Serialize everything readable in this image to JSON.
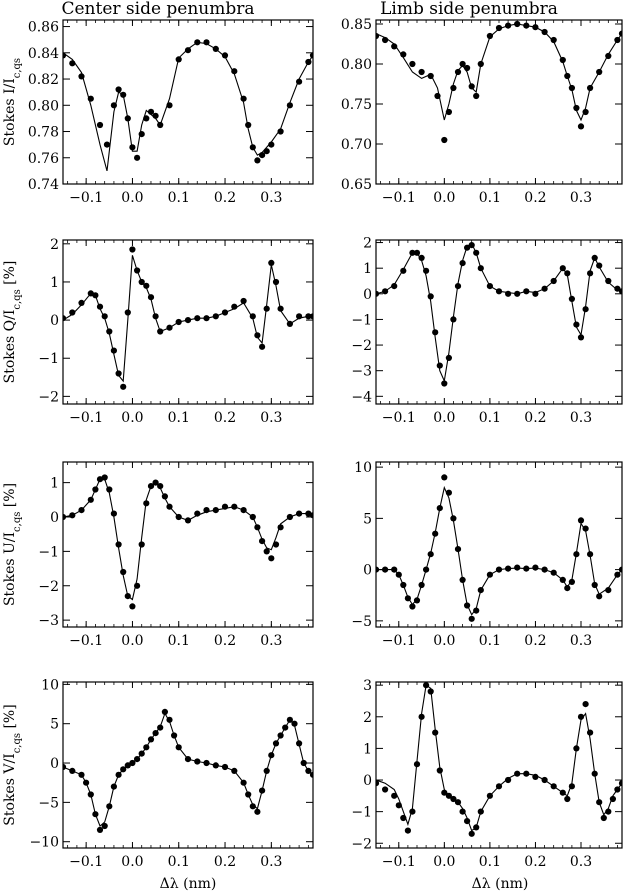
{
  "columns": [
    "Center side penumbra",
    "Limb side penumbra"
  ],
  "xlabel": "Δλ (nm)",
  "chart_data": [
    {
      "type": "scatter",
      "row": 0,
      "col": 0,
      "ylabel_main": "Stokes I/I",
      "ylabel_sub": "c,qs",
      "ylabel_suffix": "",
      "xlim": [
        -0.15,
        0.39
      ],
      "xticks": [
        -0.1,
        0.0,
        0.1,
        0.2,
        0.3
      ],
      "xticklabels": [
        "−0.1",
        "0.0",
        "0.1",
        "0.2",
        "0.3"
      ],
      "ylim": [
        0.74,
        0.865
      ],
      "yticks": [
        0.74,
        0.76,
        0.78,
        0.8,
        0.82,
        0.84,
        0.86
      ],
      "yticklabels": [
        "0.74",
        "0.76",
        "0.78",
        "0.80",
        "0.82",
        "0.84",
        "0.86"
      ],
      "x": [
        -0.15,
        -0.13,
        -0.11,
        -0.09,
        -0.07,
        -0.055,
        -0.04,
        -0.03,
        -0.02,
        -0.01,
        0.0,
        0.01,
        0.02,
        0.03,
        0.04,
        0.05,
        0.06,
        0.08,
        0.1,
        0.12,
        0.14,
        0.16,
        0.18,
        0.2,
        0.22,
        0.24,
        0.25,
        0.26,
        0.27,
        0.28,
        0.29,
        0.3,
        0.32,
        0.34,
        0.36,
        0.38,
        0.39
      ],
      "y": [
        0.838,
        0.832,
        0.822,
        0.805,
        0.785,
        0.77,
        0.8,
        0.812,
        0.808,
        0.79,
        0.768,
        0.76,
        0.778,
        0.79,
        0.795,
        0.792,
        0.785,
        0.8,
        0.835,
        0.842,
        0.848,
        0.848,
        0.843,
        0.838,
        0.826,
        0.805,
        0.785,
        0.768,
        0.758,
        0.762,
        0.765,
        0.77,
        0.78,
        0.8,
        0.818,
        0.833,
        0.838
      ],
      "fit": [
        0.84,
        0.835,
        0.825,
        0.8,
        0.77,
        0.75,
        0.795,
        0.81,
        0.808,
        0.79,
        0.765,
        0.765,
        0.785,
        0.796,
        0.793,
        0.79,
        0.785,
        0.805,
        0.836,
        0.843,
        0.848,
        0.847,
        0.843,
        0.837,
        0.824,
        0.802,
        0.782,
        0.768,
        0.762,
        0.764,
        0.768,
        0.772,
        0.782,
        0.802,
        0.82,
        0.833,
        0.838
      ]
    },
    {
      "type": "scatter",
      "row": 0,
      "col": 1,
      "ylabel_main": "",
      "ylabel_sub": "",
      "ylabel_suffix": "",
      "xlim": [
        -0.15,
        0.39
      ],
      "xticks": [
        -0.1,
        0.0,
        0.1,
        0.2,
        0.3
      ],
      "xticklabels": [
        "−0.1",
        "0.0",
        "0.1",
        "0.2",
        "0.3"
      ],
      "ylim": [
        0.65,
        0.855
      ],
      "yticks": [
        0.65,
        0.7,
        0.75,
        0.8,
        0.85
      ],
      "yticklabels": [
        "0.65",
        "0.70",
        "0.75",
        "0.80",
        "0.85"
      ],
      "x": [
        -0.15,
        -0.13,
        -0.11,
        -0.09,
        -0.07,
        -0.05,
        -0.03,
        -0.015,
        0.0,
        0.01,
        0.02,
        0.03,
        0.04,
        0.05,
        0.06,
        0.07,
        0.08,
        0.1,
        0.12,
        0.14,
        0.16,
        0.18,
        0.2,
        0.22,
        0.24,
        0.26,
        0.27,
        0.28,
        0.29,
        0.3,
        0.31,
        0.32,
        0.34,
        0.36,
        0.38,
        0.39
      ],
      "y": [
        0.835,
        0.83,
        0.822,
        0.812,
        0.8,
        0.79,
        0.785,
        0.76,
        0.705,
        0.74,
        0.77,
        0.79,
        0.8,
        0.795,
        0.772,
        0.76,
        0.8,
        0.835,
        0.845,
        0.848,
        0.85,
        0.848,
        0.846,
        0.84,
        0.83,
        0.805,
        0.785,
        0.77,
        0.745,
        0.722,
        0.74,
        0.77,
        0.79,
        0.81,
        0.83,
        0.838
      ],
      "fit": [
        0.838,
        0.833,
        0.825,
        0.808,
        0.79,
        0.782,
        0.787,
        0.77,
        0.73,
        0.75,
        0.775,
        0.792,
        0.798,
        0.79,
        0.77,
        0.765,
        0.8,
        0.834,
        0.844,
        0.848,
        0.85,
        0.848,
        0.846,
        0.84,
        0.828,
        0.803,
        0.785,
        0.768,
        0.742,
        0.73,
        0.745,
        0.77,
        0.79,
        0.812,
        0.83,
        0.838
      ]
    },
    {
      "type": "scatter",
      "row": 1,
      "col": 0,
      "ylabel_main": "Stokes Q/I",
      "ylabel_sub": "c,qs",
      "ylabel_suffix": " [%]",
      "xlim": [
        -0.15,
        0.39
      ],
      "xticks": [
        -0.1,
        0.0,
        0.1,
        0.2,
        0.3
      ],
      "xticklabels": [
        "−0.1",
        "0.0",
        "0.1",
        "0.2",
        "0.3"
      ],
      "ylim": [
        -2.2,
        2.1
      ],
      "yticks": [
        -2,
        -1,
        0,
        1,
        2
      ],
      "yticklabels": [
        "−2",
        "−1",
        "0",
        "1",
        "2"
      ],
      "x": [
        -0.15,
        -0.13,
        -0.11,
        -0.09,
        -0.08,
        -0.07,
        -0.06,
        -0.05,
        -0.04,
        -0.03,
        -0.02,
        -0.01,
        0.0,
        0.01,
        0.02,
        0.03,
        0.04,
        0.05,
        0.06,
        0.08,
        0.1,
        0.12,
        0.14,
        0.16,
        0.18,
        0.2,
        0.22,
        0.24,
        0.26,
        0.27,
        0.28,
        0.29,
        0.3,
        0.31,
        0.32,
        0.34,
        0.36,
        0.38,
        0.39
      ],
      "y": [
        0.05,
        0.2,
        0.45,
        0.7,
        0.65,
        0.35,
        0.1,
        -0.3,
        -0.8,
        -1.4,
        -1.75,
        0.2,
        1.85,
        1.3,
        1.0,
        0.9,
        0.6,
        0.1,
        -0.3,
        -0.2,
        -0.05,
        0.0,
        0.05,
        0.05,
        0.1,
        0.2,
        0.35,
        0.5,
        0.1,
        -0.4,
        -0.7,
        0.3,
        1.5,
        1.0,
        0.3,
        -0.1,
        0.1,
        0.1,
        0.1
      ],
      "fit": [
        0.0,
        0.15,
        0.4,
        0.7,
        0.65,
        0.3,
        0.05,
        -0.35,
        -0.9,
        -1.45,
        -1.6,
        0.0,
        1.7,
        1.3,
        1.0,
        0.85,
        0.55,
        0.05,
        -0.3,
        -0.2,
        -0.05,
        0.0,
        0.05,
        0.05,
        0.1,
        0.2,
        0.3,
        0.45,
        0.05,
        -0.45,
        -0.6,
        0.4,
        1.45,
        0.9,
        0.25,
        -0.1,
        0.05,
        0.1,
        0.1
      ]
    },
    {
      "type": "scatter",
      "row": 1,
      "col": 1,
      "ylabel_main": "",
      "ylabel_sub": "",
      "ylabel_suffix": "",
      "xlim": [
        -0.15,
        0.39
      ],
      "xticks": [
        -0.1,
        0.0,
        0.1,
        0.2,
        0.3
      ],
      "xticklabels": [
        "−0.1",
        "0.0",
        "0.1",
        "0.2",
        "0.3"
      ],
      "ylim": [
        -4.3,
        2.1
      ],
      "yticks": [
        -4,
        -3,
        -2,
        -1,
        0,
        1,
        2
      ],
      "yticklabels": [
        "−4",
        "−3",
        "−2",
        "−1",
        "0",
        "1",
        "2"
      ],
      "x": [
        -0.15,
        -0.13,
        -0.11,
        -0.09,
        -0.07,
        -0.06,
        -0.05,
        -0.04,
        -0.03,
        -0.02,
        -0.01,
        0.0,
        0.01,
        0.02,
        0.03,
        0.04,
        0.05,
        0.06,
        0.07,
        0.08,
        0.1,
        0.12,
        0.14,
        0.16,
        0.18,
        0.2,
        0.22,
        0.24,
        0.26,
        0.27,
        0.28,
        0.29,
        0.3,
        0.31,
        0.32,
        0.33,
        0.34,
        0.36,
        0.38,
        0.39
      ],
      "y": [
        0.0,
        0.1,
        0.3,
        0.9,
        1.6,
        1.6,
        1.4,
        0.9,
        -0.1,
        -1.5,
        -2.8,
        -3.5,
        -2.5,
        -1.0,
        0.3,
        1.2,
        1.8,
        1.9,
        1.6,
        1.0,
        0.3,
        0.1,
        0.0,
        0.0,
        0.1,
        0.0,
        0.2,
        0.5,
        1.0,
        0.8,
        -0.2,
        -1.2,
        -1.7,
        -0.6,
        0.8,
        1.4,
        1.1,
        0.5,
        0.2,
        0.1
      ],
      "fit": [
        0.0,
        0.1,
        0.35,
        0.95,
        1.6,
        1.6,
        1.3,
        0.7,
        -0.3,
        -1.7,
        -3.0,
        -3.4,
        -2.3,
        -0.9,
        0.4,
        1.3,
        1.85,
        1.95,
        1.6,
        1.0,
        0.3,
        0.1,
        0.05,
        0.0,
        0.1,
        0.05,
        0.2,
        0.5,
        1.0,
        0.75,
        -0.3,
        -1.3,
        -1.6,
        -0.5,
        0.9,
        1.4,
        1.05,
        0.45,
        0.15,
        0.1
      ]
    },
    {
      "type": "scatter",
      "row": 2,
      "col": 0,
      "ylabel_main": "Stokes U/I",
      "ylabel_sub": "c,qs",
      "ylabel_suffix": " [%]",
      "xlim": [
        -0.15,
        0.39
      ],
      "xticks": [
        -0.1,
        0.0,
        0.1,
        0.2,
        0.3
      ],
      "xticklabels": [
        "−0.1",
        "0.0",
        "0.1",
        "0.2",
        "0.3"
      ],
      "ylim": [
        -3.2,
        1.6
      ],
      "yticks": [
        -3,
        -2,
        -1,
        0,
        1
      ],
      "yticklabels": [
        "−3",
        "−2",
        "−1",
        "0",
        "1"
      ],
      "x": [
        -0.15,
        -0.13,
        -0.11,
        -0.09,
        -0.08,
        -0.07,
        -0.06,
        -0.05,
        -0.04,
        -0.03,
        -0.02,
        -0.01,
        0.0,
        0.01,
        0.02,
        0.03,
        0.04,
        0.05,
        0.06,
        0.07,
        0.08,
        0.1,
        0.12,
        0.14,
        0.16,
        0.18,
        0.2,
        0.22,
        0.24,
        0.26,
        0.27,
        0.28,
        0.29,
        0.3,
        0.31,
        0.32,
        0.34,
        0.36,
        0.38,
        0.39
      ],
      "y": [
        0.0,
        0.05,
        0.2,
        0.5,
        0.8,
        1.1,
        1.15,
        0.8,
        0.1,
        -0.8,
        -1.6,
        -2.3,
        -2.6,
        -2.0,
        -0.8,
        0.4,
        0.9,
        1.0,
        0.9,
        0.6,
        0.3,
        0.0,
        -0.1,
        0.1,
        0.2,
        0.2,
        0.3,
        0.3,
        0.2,
        0.0,
        -0.3,
        -0.7,
        -1.0,
        -1.2,
        -0.8,
        -0.3,
        0.0,
        0.1,
        0.1,
        0.05
      ],
      "fit": [
        0.0,
        0.05,
        0.2,
        0.5,
        0.8,
        1.1,
        1.1,
        0.7,
        0.0,
        -0.9,
        -1.7,
        -2.3,
        -2.4,
        -1.8,
        -0.6,
        0.5,
        0.9,
        1.0,
        0.85,
        0.55,
        0.3,
        0.0,
        -0.1,
        0.05,
        0.15,
        0.2,
        0.25,
        0.3,
        0.2,
        0.0,
        -0.3,
        -0.65,
        -0.9,
        -0.95,
        -0.6,
        -0.2,
        0.0,
        0.1,
        0.1,
        0.05
      ]
    },
    {
      "type": "scatter",
      "row": 2,
      "col": 1,
      "ylabel_main": "",
      "ylabel_sub": "",
      "ylabel_suffix": "",
      "xlim": [
        -0.15,
        0.39
      ],
      "xticks": [
        -0.1,
        0.0,
        0.1,
        0.2,
        0.3
      ],
      "xticklabels": [
        "−0.1",
        "0.0",
        "0.1",
        "0.2",
        "0.3"
      ],
      "ylim": [
        -5.6,
        10.5
      ],
      "yticks": [
        -5,
        0,
        5,
        10
      ],
      "yticklabels": [
        "−5",
        "0",
        "5",
        "10"
      ],
      "x": [
        -0.15,
        -0.13,
        -0.11,
        -0.1,
        -0.09,
        -0.08,
        -0.07,
        -0.06,
        -0.05,
        -0.04,
        -0.03,
        -0.02,
        -0.01,
        0.0,
        0.01,
        0.02,
        0.03,
        0.04,
        0.05,
        0.06,
        0.07,
        0.08,
        0.1,
        0.12,
        0.14,
        0.16,
        0.18,
        0.2,
        0.22,
        0.24,
        0.26,
        0.27,
        0.28,
        0.29,
        0.3,
        0.31,
        0.32,
        0.33,
        0.34,
        0.36,
        0.38,
        0.39
      ],
      "y": [
        0.0,
        0.0,
        0.0,
        -0.5,
        -1.5,
        -2.8,
        -3.6,
        -3.0,
        -1.5,
        0.0,
        1.5,
        3.5,
        6.0,
        9.0,
        7.5,
        5.0,
        2.0,
        -1.0,
        -3.5,
        -4.8,
        -4.0,
        -2.0,
        -0.5,
        0.0,
        0.1,
        0.2,
        0.1,
        0.2,
        0.0,
        -0.3,
        -1.0,
        -1.8,
        -1.2,
        1.5,
        4.8,
        4.0,
        1.5,
        -1.5,
        -2.6,
        -2.0,
        -0.5,
        0.0
      ],
      "fit": [
        0.0,
        0.0,
        0.0,
        -0.5,
        -1.5,
        -2.7,
        -3.4,
        -2.9,
        -1.5,
        0.0,
        1.6,
        3.6,
        6.0,
        8.0,
        7.0,
        4.8,
        2.0,
        -1.0,
        -3.4,
        -4.4,
        -3.8,
        -2.0,
        -0.5,
        0.0,
        0.1,
        0.15,
        0.1,
        0.15,
        0.0,
        -0.3,
        -1.0,
        -1.7,
        -1.0,
        1.6,
        4.5,
        3.8,
        1.4,
        -1.4,
        -2.4,
        -1.8,
        -0.5,
        0.0
      ]
    },
    {
      "type": "scatter",
      "row": 3,
      "col": 0,
      "ylabel_main": "Stokes V/I",
      "ylabel_sub": "c,qs",
      "ylabel_suffix": " [%]",
      "xlim": [
        -0.15,
        0.39
      ],
      "xticks": [
        -0.1,
        0.0,
        0.1,
        0.2,
        0.3
      ],
      "xticklabels": [
        "−0.1",
        "0.0",
        "0.1",
        "0.2",
        "0.3"
      ],
      "ylim": [
        -10.8,
        10.3
      ],
      "yticks": [
        -10,
        -5,
        0,
        5,
        10
      ],
      "yticklabels": [
        "−10",
        "−5",
        "0",
        "5",
        "10"
      ],
      "x": [
        -0.15,
        -0.13,
        -0.11,
        -0.1,
        -0.09,
        -0.08,
        -0.07,
        -0.06,
        -0.05,
        -0.04,
        -0.03,
        -0.02,
        -0.01,
        0.0,
        0.01,
        0.02,
        0.03,
        0.04,
        0.05,
        0.06,
        0.07,
        0.08,
        0.09,
        0.1,
        0.12,
        0.14,
        0.16,
        0.18,
        0.2,
        0.22,
        0.24,
        0.25,
        0.26,
        0.27,
        0.28,
        0.29,
        0.3,
        0.31,
        0.32,
        0.33,
        0.34,
        0.35,
        0.36,
        0.37,
        0.38,
        0.39
      ],
      "y": [
        -0.5,
        -1.0,
        -1.5,
        -2.5,
        -4.0,
        -6.5,
        -8.5,
        -8.0,
        -5.5,
        -3.0,
        -1.5,
        -0.8,
        -0.3,
        0.0,
        0.5,
        1.2,
        2.0,
        3.0,
        3.8,
        4.5,
        6.5,
        5.5,
        3.5,
        2.0,
        0.5,
        0.2,
        0.0,
        -0.3,
        -0.5,
        -1.0,
        -2.5,
        -4.0,
        -5.5,
        -6.2,
        -3.5,
        -1.0,
        1.0,
        2.5,
        3.5,
        4.5,
        5.5,
        5.0,
        2.5,
        0.0,
        -1.0,
        -1.5
      ],
      "fit": [
        -0.5,
        -1.0,
        -1.5,
        -2.5,
        -4.0,
        -6.5,
        -8.0,
        -7.5,
        -5.5,
        -3.0,
        -1.5,
        -0.8,
        -0.3,
        0.0,
        0.5,
        1.2,
        2.0,
        3.0,
        3.8,
        4.6,
        6.3,
        5.3,
        3.5,
        2.0,
        0.5,
        0.2,
        0.0,
        -0.3,
        -0.5,
        -1.0,
        -2.5,
        -4.0,
        -5.3,
        -5.8,
        -3.5,
        -1.0,
        1.0,
        2.5,
        3.5,
        4.5,
        5.5,
        4.8,
        2.4,
        0.0,
        -1.0,
        -1.5
      ]
    },
    {
      "type": "scatter",
      "row": 3,
      "col": 1,
      "ylabel_main": "",
      "ylabel_sub": "",
      "ylabel_suffix": "",
      "xlim": [
        -0.15,
        0.39
      ],
      "xticks": [
        -0.1,
        0.0,
        0.1,
        0.2,
        0.3
      ],
      "xticklabels": [
        "−0.1",
        "0.0",
        "0.1",
        "0.2",
        "0.3"
      ],
      "ylim": [
        -2.15,
        3.1
      ],
      "yticks": [
        -2,
        -1,
        0,
        1,
        2,
        3
      ],
      "yticklabels": [
        "−2",
        "−1",
        "0",
        "1",
        "2",
        "3"
      ],
      "x": [
        -0.15,
        -0.13,
        -0.11,
        -0.1,
        -0.09,
        -0.08,
        -0.07,
        -0.06,
        -0.05,
        -0.04,
        -0.03,
        -0.02,
        -0.01,
        0.0,
        0.01,
        0.02,
        0.03,
        0.04,
        0.05,
        0.06,
        0.07,
        0.08,
        0.1,
        0.12,
        0.14,
        0.16,
        0.18,
        0.2,
        0.22,
        0.24,
        0.26,
        0.27,
        0.28,
        0.29,
        0.3,
        0.31,
        0.32,
        0.33,
        0.34,
        0.35,
        0.36,
        0.37,
        0.38,
        0.39
      ],
      "y": [
        -0.1,
        -0.3,
        -0.5,
        -0.8,
        -1.2,
        -1.6,
        -1.0,
        0.5,
        2.0,
        3.0,
        2.8,
        1.5,
        0.3,
        -0.4,
        -0.5,
        -0.6,
        -0.7,
        -1.0,
        -1.3,
        -1.7,
        -1.5,
        -1.0,
        -0.5,
        -0.2,
        0.0,
        0.2,
        0.2,
        0.1,
        0.0,
        -0.2,
        -0.4,
        -0.6,
        -0.2,
        1.0,
        2.0,
        2.4,
        1.5,
        0.2,
        -0.7,
        -1.2,
        -1.0,
        -0.6,
        -0.3,
        -0.1
      ],
      "fit": [
        0.0,
        -0.1,
        -0.3,
        -0.6,
        -1.0,
        -1.4,
        -0.9,
        0.6,
        2.1,
        3.0,
        2.9,
        1.6,
        0.4,
        -0.3,
        -0.5,
        -0.6,
        -0.7,
        -0.9,
        -1.2,
        -1.6,
        -1.5,
        -1.0,
        -0.5,
        -0.2,
        0.05,
        0.2,
        0.2,
        0.15,
        0.0,
        -0.2,
        -0.4,
        -0.5,
        -0.1,
        1.0,
        1.9,
        2.1,
        1.3,
        0.2,
        -0.7,
        -1.1,
        -0.9,
        -0.5,
        -0.3,
        -0.1
      ]
    }
  ]
}
